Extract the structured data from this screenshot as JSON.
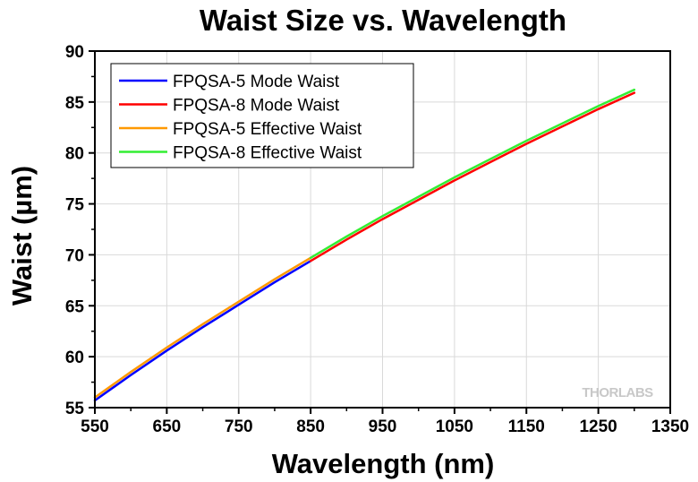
{
  "watermark": "THORLABS",
  "chart_data": {
    "type": "line",
    "title": "Waist Size vs. Wavelength",
    "xlabel": "Wavelength (nm)",
    "ylabel": "Waist (µm)",
    "xlim": [
      550,
      1350
    ],
    "ylim": [
      55,
      90
    ],
    "xticks": [
      550,
      650,
      750,
      850,
      950,
      1050,
      1150,
      1250,
      1350
    ],
    "yticks": [
      55,
      60,
      65,
      70,
      75,
      80,
      85,
      90
    ],
    "grid": true,
    "legend": "top-left",
    "series": [
      {
        "name": "FPQSA-5 Mode Waist",
        "color": "#0000ff",
        "x": [
          550,
          600,
          650,
          700,
          750,
          800,
          850
        ],
        "y": [
          55.7,
          58.2,
          60.6,
          62.9,
          65.1,
          67.3,
          69.4
        ]
      },
      {
        "name": "FPQSA-8 Mode Waist",
        "color": "#ff0000",
        "x": [
          850,
          900,
          950,
          1000,
          1050,
          1100,
          1150,
          1200,
          1250,
          1300
        ],
        "y": [
          69.4,
          71.5,
          73.5,
          75.4,
          77.3,
          79.1,
          80.9,
          82.6,
          84.3,
          85.9
        ]
      },
      {
        "name": "FPQSA-5 Effective Waist",
        "color": "#ff9900",
        "x": [
          550,
          600,
          650,
          700,
          750,
          800,
          850
        ],
        "y": [
          56.0,
          58.5,
          60.9,
          63.2,
          65.4,
          67.6,
          69.7
        ]
      },
      {
        "name": "FPQSA-8 Effective Waist",
        "color": "#33ee33",
        "x": [
          850,
          900,
          950,
          1000,
          1050,
          1100,
          1150,
          1200,
          1250,
          1300
        ],
        "y": [
          69.7,
          71.8,
          73.8,
          75.7,
          77.6,
          79.4,
          81.2,
          82.9,
          84.6,
          86.2
        ]
      }
    ]
  }
}
